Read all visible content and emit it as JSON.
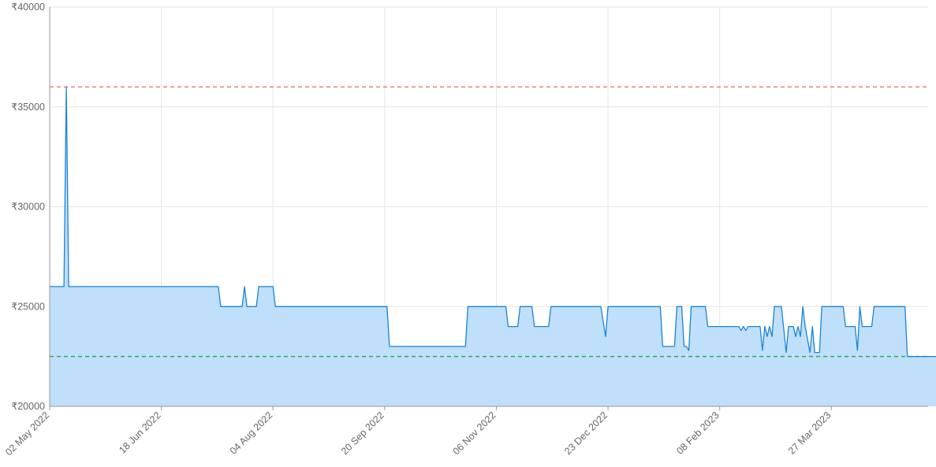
{
  "chart_data": {
    "type": "area",
    "title": "",
    "xlabel": "",
    "ylabel": "",
    "y_prefix": "₹",
    "ylim": [
      20000,
      40000
    ],
    "y_ticks": [
      20000,
      25000,
      30000,
      35000,
      40000
    ],
    "y_tick_labels": [
      "₹20000",
      "₹25000",
      "₹30000",
      "₹35000",
      "₹40000"
    ],
    "x_range": [
      "2022-05-02",
      "2023-05-21"
    ],
    "x_ticks": [
      "2022-05-02",
      "2022-06-18",
      "2022-08-04",
      "2022-09-20",
      "2022-11-06",
      "2022-12-23",
      "2023-02-08",
      "2023-03-27"
    ],
    "x_tick_labels": [
      "02 May 2022",
      "18 Jun 2022",
      "04 Aug 2022",
      "20 Sep 2022",
      "06 Nov 2022",
      "23 Dec 2022",
      "08 Feb 2023",
      "27 Mar 2023"
    ],
    "grid": true,
    "legend": "none",
    "colors": {
      "line": "#1a84d8",
      "fill": "#bfdffb",
      "max_line": "#ec7b7b",
      "min_line": "#3aa650"
    },
    "reference_lines": [
      {
        "value": 36000,
        "color": "#ec7b7b"
      },
      {
        "value": 22500,
        "color": "#3aa650"
      }
    ],
    "series": [
      {
        "points": [
          [
            "2022-05-02",
            26000
          ],
          [
            "2022-05-08",
            26000
          ],
          [
            "2022-05-09",
            36000
          ],
          [
            "2022-05-10",
            26000
          ],
          [
            "2022-07-12",
            26000
          ],
          [
            "2022-07-13",
            25000
          ],
          [
            "2022-07-22",
            25000
          ],
          [
            "2022-07-23",
            26000
          ],
          [
            "2022-07-24",
            25000
          ],
          [
            "2022-07-28",
            25000
          ],
          [
            "2022-07-29",
            26000
          ],
          [
            "2022-08-04",
            26000
          ],
          [
            "2022-08-05",
            25000
          ],
          [
            "2022-09-21",
            25000
          ],
          [
            "2022-09-22",
            23000
          ],
          [
            "2022-10-24",
            23000
          ],
          [
            "2022-10-25",
            25000
          ],
          [
            "2022-11-10",
            25000
          ],
          [
            "2022-11-11",
            24000
          ],
          [
            "2022-11-15",
            24000
          ],
          [
            "2022-11-16",
            25000
          ],
          [
            "2022-11-21",
            25000
          ],
          [
            "2022-11-22",
            24000
          ],
          [
            "2022-11-28",
            24000
          ],
          [
            "2022-11-29",
            25000
          ],
          [
            "2022-12-20",
            25000
          ],
          [
            "2022-12-22",
            23500
          ],
          [
            "2022-12-23",
            25000
          ],
          [
            "2023-01-14",
            25000
          ],
          [
            "2023-01-15",
            23000
          ],
          [
            "2023-01-20",
            23000
          ],
          [
            "2023-01-21",
            25000
          ],
          [
            "2023-01-23",
            25000
          ],
          [
            "2023-01-24",
            23000
          ],
          [
            "2023-01-25",
            23000
          ],
          [
            "2023-01-26",
            22800
          ],
          [
            "2023-01-27",
            25000
          ],
          [
            "2023-02-02",
            25000
          ],
          [
            "2023-02-03",
            24000
          ],
          [
            "2023-02-16",
            24000
          ],
          [
            "2023-02-17",
            23800
          ],
          [
            "2023-02-18",
            24000
          ],
          [
            "2023-02-19",
            23800
          ],
          [
            "2023-02-20",
            24000
          ],
          [
            "2023-02-25",
            24000
          ],
          [
            "2023-02-26",
            22800
          ],
          [
            "2023-02-27",
            24000
          ],
          [
            "2023-02-28",
            23500
          ],
          [
            "2023-03-01",
            24000
          ],
          [
            "2023-03-02",
            23500
          ],
          [
            "2023-03-03",
            25000
          ],
          [
            "2023-03-06",
            25000
          ],
          [
            "2023-03-08",
            22700
          ],
          [
            "2023-03-09",
            24000
          ],
          [
            "2023-03-11",
            24000
          ],
          [
            "2023-03-12",
            23500
          ],
          [
            "2023-03-13",
            24000
          ],
          [
            "2023-03-14",
            23500
          ],
          [
            "2023-03-15",
            25000
          ],
          [
            "2023-03-16",
            24000
          ],
          [
            "2023-03-18",
            22700
          ],
          [
            "2023-03-19",
            24000
          ],
          [
            "2023-03-20",
            22700
          ],
          [
            "2023-03-22",
            22700
          ],
          [
            "2023-03-23",
            25000
          ],
          [
            "2023-04-01",
            25000
          ],
          [
            "2023-04-02",
            24000
          ],
          [
            "2023-04-06",
            24000
          ],
          [
            "2023-04-07",
            22800
          ],
          [
            "2023-04-08",
            25000
          ],
          [
            "2023-04-09",
            24000
          ],
          [
            "2023-04-13",
            24000
          ],
          [
            "2023-04-14",
            25000
          ],
          [
            "2023-04-27",
            25000
          ],
          [
            "2023-04-28",
            22500
          ],
          [
            "2023-05-21",
            22500
          ]
        ]
      }
    ]
  }
}
